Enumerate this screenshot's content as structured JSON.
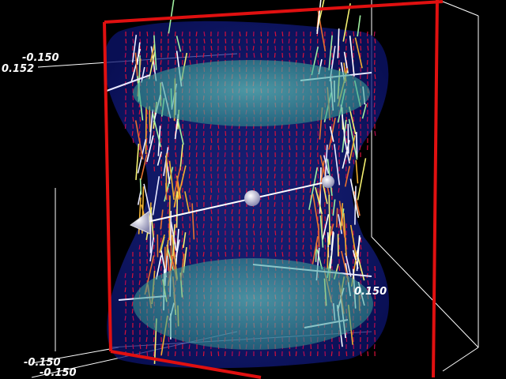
{
  "axis_labels": {
    "top_left_a": "-0.150",
    "top_left_b": "0.152",
    "right_mid": "0.150",
    "bottom_left_a": "-0.150",
    "bottom_left_b": "-0.150"
  },
  "colors": {
    "background": "#000000",
    "bounding_box": "#ffffff",
    "selection_box": "#e01010",
    "outer_isosurface": "#1a2aa8",
    "inner_isosurface": "#3fc6b0",
    "vector_low": "#e0103a",
    "vector_high": "#f4f070",
    "probe_widget": "#ffffff"
  },
  "icons": {
    "probe_start": "cone-handle-icon",
    "probe_mid": "sphere-handle-icon",
    "probe_end": "sphere-handle-icon"
  }
}
